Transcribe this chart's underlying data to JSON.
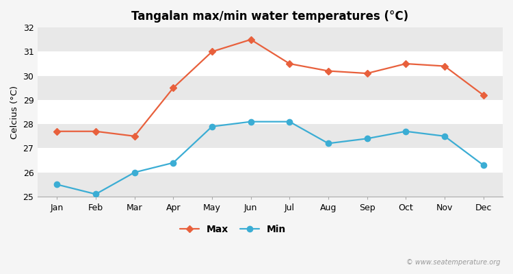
{
  "title": "Tangalan max/min water temperatures (°C)",
  "ylabel": "Celcius (°C)",
  "months": [
    "Jan",
    "Feb",
    "Mar",
    "Apr",
    "May",
    "Jun",
    "Jul",
    "Aug",
    "Sep",
    "Oct",
    "Nov",
    "Dec"
  ],
  "max_temps": [
    27.7,
    27.7,
    27.5,
    29.5,
    31.0,
    31.5,
    30.5,
    30.2,
    30.1,
    30.5,
    30.4,
    29.2
  ],
  "min_temps": [
    25.5,
    25.1,
    26.0,
    26.4,
    27.9,
    28.1,
    28.1,
    27.2,
    27.4,
    27.7,
    27.5,
    26.3
  ],
  "max_color": "#e8603c",
  "min_color": "#3badd4",
  "bg_color": "#f5f5f5",
  "plot_bg_color": "#ffffff",
  "band_color": "#e8e8e8",
  "ylim": [
    25,
    32
  ],
  "yticks": [
    25,
    26,
    27,
    28,
    29,
    30,
    31,
    32
  ],
  "watermark": "© www.seatemperature.org",
  "title_fontsize": 12,
  "label_fontsize": 9.5,
  "tick_fontsize": 9
}
